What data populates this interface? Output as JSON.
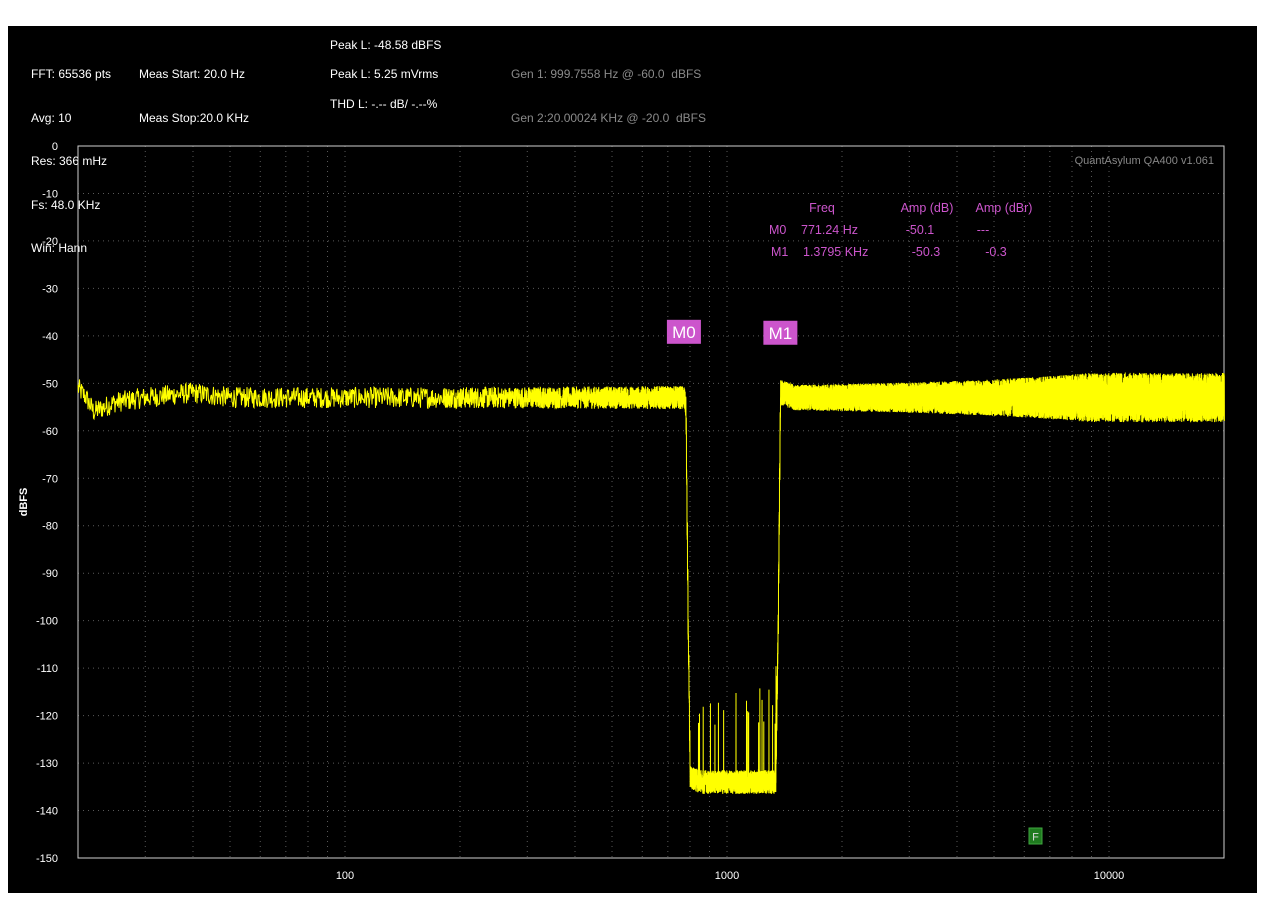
{
  "header": {
    "col1": [
      "FFT: 65536 pts",
      "Avg: 10",
      "Res: 366 mHz",
      "Fs: 48.0 KHz",
      "Win: Hann"
    ],
    "col2": [
      "Meas Start: 20.0 Hz",
      "Meas Stop:20.0 KHz"
    ],
    "peak_dbfs": "Peak L: -48.58 dBFS",
    "peak_vrms": "Peak L: 5.25 mVrms",
    "thd": "THD L: -.-- dB/ -.--%",
    "gen1": "Gen 1: 999.7558 Hz @ -60.0  dBFS",
    "gen2": "Gen 2:20.00024 KHz @ -20.0  dBFS"
  },
  "watermark": "QuantAsylum QA400 v1.061",
  "marker_table": {
    "headers": [
      "Freq",
      "Amp (dB)",
      "Amp (dBr)"
    ],
    "rows": [
      {
        "name": "M0",
        "freq": "771.24 Hz",
        "amp_db": "-50.1",
        "amp_dbr": "---"
      },
      {
        "name": "M1",
        "freq": "1.3795 KHz",
        "amp_db": "-50.3",
        "amp_dbr": "-0.3"
      }
    ]
  },
  "filter_button": "F",
  "colors": {
    "background": "#000000",
    "trace": "#ffff00",
    "marker": "#cc55cc",
    "grid": "#5a5a5a",
    "filter_button": "#1f7a1f"
  },
  "chart_data": {
    "type": "line",
    "title": "",
    "xlabel": "",
    "ylabel": "dBFS",
    "xscale": "log",
    "xlim": [
      20,
      20000
    ],
    "ylim": [
      -150,
      0
    ],
    "xticks": [
      "100",
      "1000",
      "10000"
    ],
    "xtick_values": [
      100,
      1000,
      10000
    ],
    "yticks": [
      "0",
      "-10",
      "-20",
      "-30",
      "-40",
      "-50",
      "-60",
      "-70",
      "-80",
      "-90",
      "-100",
      "-110",
      "-120",
      "-130",
      "-140",
      "-150"
    ],
    "grid": true,
    "series": [
      {
        "color": "#ffff00",
        "x": [
          20,
          21,
          22,
          25,
          30,
          40,
          50,
          60,
          80,
          100,
          150,
          200,
          300,
          400,
          500,
          600,
          700,
          771,
          780,
          790,
          800,
          850,
          900,
          1000,
          1100,
          1200,
          1300,
          1340,
          1360,
          1379,
          1400,
          1500,
          2000,
          3000,
          5000,
          7000,
          10000,
          15000,
          20000
        ],
        "values": [
          -51,
          -53,
          -56,
          -54,
          -53,
          -52,
          -53,
          -53,
          -53,
          -53,
          -53,
          -53,
          -53,
          -53,
          -53,
          -53,
          -53,
          -53,
          -55,
          -100,
          -133,
          -134,
          -134,
          -134,
          -134,
          -134,
          -134,
          -134,
          -100,
          -52,
          -52,
          -53,
          -53,
          -53,
          -53,
          -53,
          -53,
          -53,
          -53
        ]
      }
    ],
    "markers": [
      {
        "label": "M0",
        "x": 771.24,
        "y": -50.1
      },
      {
        "label": "M1",
        "x": 1379.5,
        "y": -50.3
      }
    ]
  }
}
